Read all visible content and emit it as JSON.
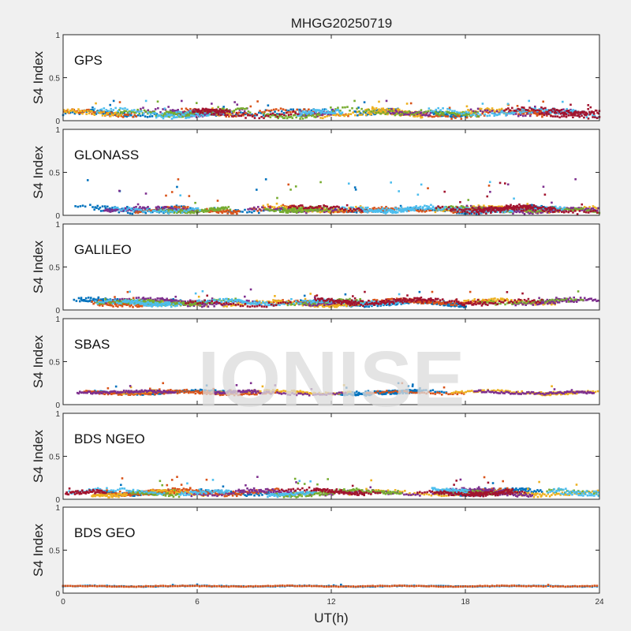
{
  "chart_data": {
    "type": "scatter",
    "title": "MHGG20250719",
    "xlabel": "UT(h)",
    "ylabel": "S4 Index",
    "xlim": [
      0,
      24
    ],
    "ylim": [
      0,
      1
    ],
    "xticks": [
      "0",
      "6",
      "12",
      "18",
      "24"
    ],
    "yticks": [
      "0",
      "0.5",
      "1"
    ],
    "watermark": "IONISE",
    "colors": [
      "#0072BD",
      "#D95319",
      "#EDB120",
      "#7E2F8E",
      "#77AC30",
      "#4DBEEE",
      "#A2142F"
    ],
    "panels": [
      {
        "label": "GPS",
        "baseline": 0.09,
        "spread": 0.05,
        "max_observed": 0.23,
        "series_count": 7
      },
      {
        "label": "GLONASS",
        "baseline": 0.07,
        "spread": 0.04,
        "max_observed": 0.42,
        "series_count": 7
      },
      {
        "label": "GALILEO",
        "baseline": 0.09,
        "spread": 0.04,
        "max_observed": 0.24,
        "series_count": 7
      },
      {
        "label": "SBAS",
        "baseline": 0.14,
        "spread": 0.025,
        "max_observed": 0.25,
        "series_count": 4
      },
      {
        "label": "BDS NGEO",
        "baseline": 0.08,
        "spread": 0.04,
        "max_observed": 0.26,
        "series_count": 7
      },
      {
        "label": "BDS GEO",
        "baseline": 0.08,
        "spread": 0.008,
        "max_observed": 0.1,
        "series_count": 2
      }
    ]
  }
}
